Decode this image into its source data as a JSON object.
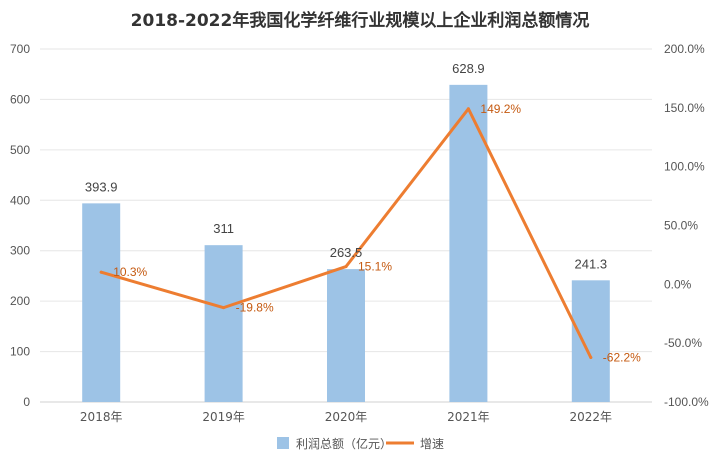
{
  "chart_data": {
    "type": "bar",
    "title": "2018-2022年我国化学纤维行业规模以上企业利润总额情况",
    "categories": [
      "2018年",
      "2019年",
      "2020年",
      "2021年",
      "2022年"
    ],
    "series": [
      {
        "name": "利润总额（亿元）",
        "type": "bar",
        "axis": "left",
        "color": "#9DC3E6",
        "values": [
          393.9,
          311,
          263.5,
          628.9,
          241.3
        ],
        "labels": [
          "393.9",
          "311",
          "263.5",
          "628.9",
          "241.3"
        ]
      },
      {
        "name": "增速",
        "type": "line",
        "axis": "right",
        "color": "#ED7D31",
        "values": [
          10.3,
          -19.8,
          15.1,
          149.2,
          -62.2
        ],
        "labels": [
          "10.3%",
          "-19.8%",
          "15.1%",
          "149.2%",
          "-62.2%"
        ]
      }
    ],
    "y_left": {
      "min": 0,
      "max": 700,
      "ticks": [
        "0",
        "100",
        "200",
        "300",
        "400",
        "500",
        "600",
        "700"
      ],
      "tick_values": [
        0,
        100,
        200,
        300,
        400,
        500,
        600,
        700
      ]
    },
    "y_right": {
      "min": -100,
      "max": 200,
      "ticks": [
        "-100.0%",
        "-50.0%",
        "0.0%",
        "50.0%",
        "100.0%",
        "150.0%",
        "200.0%"
      ],
      "tick_values": [
        -100,
        -50,
        0,
        50,
        100,
        150,
        200
      ]
    },
    "grid": true,
    "legend_position": "bottom"
  }
}
